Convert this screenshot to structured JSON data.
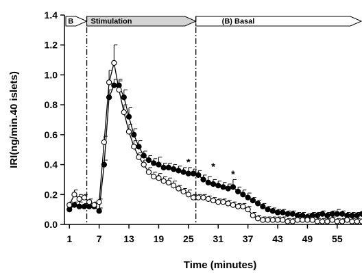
{
  "chart_data": {
    "type": "line",
    "title": "",
    "xlabel": "Time (minutes)",
    "ylabel": "IRI(ng/min.40 islets)",
    "xlim": [
      0,
      60
    ],
    "ylim": [
      0,
      1.4
    ],
    "x_ticks": [
      "1",
      "7",
      "13",
      "19",
      "25",
      "31",
      "37",
      "43",
      "49",
      "55"
    ],
    "x_tick_values": [
      1,
      7,
      13,
      19,
      25,
      31,
      37,
      43,
      49,
      55
    ],
    "y_ticks": [
      "0.0",
      "0.2",
      "0.4",
      "0.6",
      "0.8",
      "1.0",
      "1.2",
      "1.4"
    ],
    "y_tick_values": [
      0,
      0.2,
      0.4,
      0.6,
      0.8,
      1.0,
      1.2,
      1.4
    ],
    "grid": false,
    "phases": [
      {
        "label": "B",
        "start": 0,
        "end": 4.5,
        "fill": "#ffffff"
      },
      {
        "label": "Stimulation",
        "start": 4.5,
        "end": 26.5,
        "fill": "#d4d4d4"
      },
      {
        "label": "(B) Basal",
        "start": 26.5,
        "end": 60,
        "fill": "#ffffff"
      }
    ],
    "phase_dividers": [
      4.5,
      26.5
    ],
    "significance_markers": [
      {
        "x": 25,
        "y": 0.43,
        "label": "*"
      },
      {
        "x": 30,
        "y": 0.4,
        "label": "*"
      },
      {
        "x": 34,
        "y": 0.35,
        "label": "*"
      }
    ],
    "series": [
      {
        "marker": "filled-circle",
        "color": "#000000",
        "x": [
          1,
          2,
          3,
          4,
          5,
          6,
          7,
          8,
          9,
          10,
          11,
          12,
          13,
          14,
          15,
          16,
          17,
          18,
          19,
          20,
          21,
          22,
          23,
          24,
          25,
          26,
          27,
          28,
          29,
          30,
          31,
          32,
          33,
          34,
          35,
          36,
          37,
          38,
          39,
          40,
          41,
          42,
          43,
          44,
          45,
          46,
          47,
          48,
          49,
          50,
          51,
          52,
          53,
          54,
          55,
          56,
          57,
          58,
          59,
          60
        ],
        "y": [
          0.1,
          0.13,
          0.12,
          0.12,
          0.12,
          0.12,
          0.09,
          0.4,
          0.85,
          0.93,
          0.93,
          0.85,
          0.72,
          0.6,
          0.52,
          0.46,
          0.43,
          0.41,
          0.4,
          0.38,
          0.38,
          0.37,
          0.36,
          0.35,
          0.34,
          0.34,
          0.33,
          0.3,
          0.28,
          0.27,
          0.26,
          0.25,
          0.24,
          0.25,
          0.22,
          0.2,
          0.18,
          0.16,
          0.14,
          0.12,
          0.1,
          0.09,
          0.08,
          0.08,
          0.07,
          0.07,
          0.06,
          0.06,
          0.05,
          0.06,
          0.06,
          0.07,
          0.06,
          0.07,
          0.07,
          0.07,
          0.06,
          0.06,
          0.06,
          0.07
        ],
        "error": [
          0.02,
          0.02,
          0.03,
          0.02,
          0.02,
          0.02,
          0.02,
          0.03,
          0.05,
          0.04,
          0.04,
          0.05,
          0.06,
          0.04,
          0.04,
          0.03,
          0.03,
          0.03,
          0.05,
          0.03,
          0.03,
          0.03,
          0.03,
          0.03,
          0.04,
          0.03,
          0.03,
          0.03,
          0.04,
          0.03,
          0.03,
          0.03,
          0.03,
          0.05,
          0.03,
          0.03,
          0.03,
          0.02,
          0.02,
          0.02,
          0.02,
          0.02,
          0.02,
          0.02,
          0.02,
          0.02,
          0.02,
          0.02,
          0.02,
          0.02,
          0.02,
          0.02,
          0.02,
          0.02,
          0.03,
          0.02,
          0.02,
          0.02,
          0.02,
          0.02
        ]
      },
      {
        "marker": "open-circle",
        "color": "#000000",
        "x": [
          1,
          2,
          3,
          4,
          5,
          6,
          7,
          8,
          9,
          10,
          11,
          12,
          13,
          14,
          15,
          16,
          17,
          18,
          19,
          20,
          21,
          22,
          23,
          24,
          25,
          26,
          27,
          28,
          29,
          30,
          31,
          32,
          33,
          34,
          35,
          36,
          37,
          38,
          39,
          40,
          41,
          42,
          43,
          44,
          45,
          46,
          47,
          48,
          49,
          50,
          51,
          52,
          53,
          54,
          55,
          56,
          57,
          58,
          59,
          60
        ],
        "y": [
          0.13,
          0.2,
          0.17,
          0.18,
          0.15,
          0.13,
          0.15,
          0.55,
          0.95,
          1.08,
          0.9,
          0.75,
          0.62,
          0.52,
          0.45,
          0.4,
          0.35,
          0.32,
          0.31,
          0.29,
          0.28,
          0.26,
          0.24,
          0.22,
          0.2,
          0.18,
          0.18,
          0.18,
          0.17,
          0.16,
          0.15,
          0.15,
          0.14,
          0.13,
          0.12,
          0.12,
          0.1,
          0.06,
          0.04,
          0.03,
          0.03,
          0.03,
          0.03,
          0.03,
          0.02,
          0.02,
          0.03,
          0.03,
          0.03,
          0.03,
          0.02,
          0.02,
          0.02,
          0.03,
          0.02,
          0.02,
          0.03,
          0.02,
          0.02,
          0.02
        ],
        "error": [
          0.02,
          0.03,
          0.03,
          0.02,
          0.02,
          0.02,
          0.02,
          0.04,
          0.08,
          0.12,
          0.06,
          0.05,
          0.05,
          0.04,
          0.03,
          0.03,
          0.03,
          0.03,
          0.03,
          0.03,
          0.03,
          0.03,
          0.02,
          0.02,
          0.03,
          0.02,
          0.02,
          0.02,
          0.02,
          0.02,
          0.02,
          0.02,
          0.02,
          0.02,
          0.02,
          0.02,
          0.02,
          0.02,
          0.02,
          0.02,
          0.02,
          0.02,
          0.02,
          0.02,
          0.02,
          0.02,
          0.02,
          0.02,
          0.02,
          0.02,
          0.02,
          0.02,
          0.02,
          0.02,
          0.02,
          0.02,
          0.02,
          0.02,
          0.02,
          0.02
        ]
      }
    ]
  }
}
